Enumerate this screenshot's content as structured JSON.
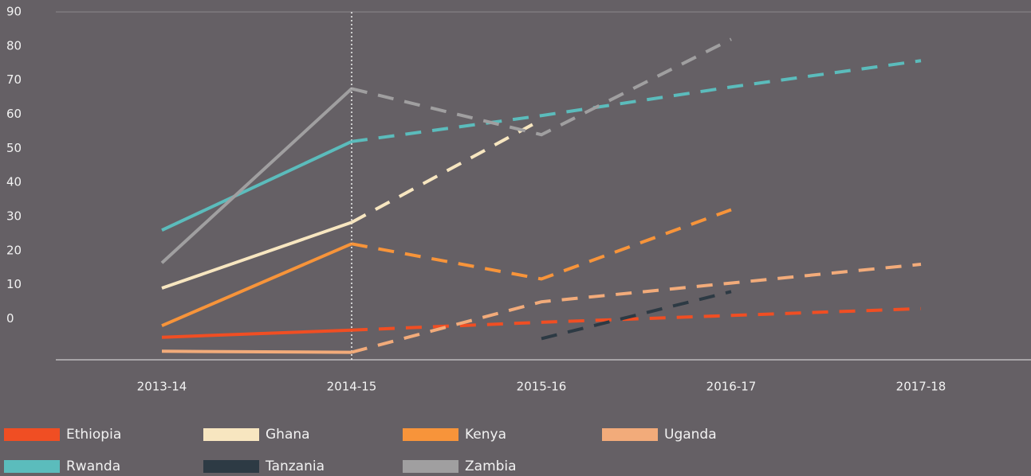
{
  "chart_data": {
    "type": "line",
    "categories": [
      "2013-14",
      "2014-15",
      "2015-16",
      "2016-17",
      "2017-18"
    ],
    "series": [
      {
        "name": "Ethiopia",
        "color": "#f04e23",
        "values": [
          -5.4,
          -3.3,
          -1,
          1,
          3
        ]
      },
      {
        "name": "Ghana",
        "color": "#f7e6c0",
        "values": [
          9,
          28.3,
          58.4,
          null,
          null
        ]
      },
      {
        "name": "Kenya",
        "color": "#f7943a",
        "values": [
          -2,
          22,
          11.7,
          32,
          null
        ]
      },
      {
        "name": "Uganda",
        "color": "#f2ab7a",
        "values": [
          -9.5,
          -9.8,
          5,
          10.5,
          16
        ]
      },
      {
        "name": "Rwanda",
        "color": "#5bbcbc",
        "values": [
          26,
          52,
          59.6,
          68,
          75.7
        ]
      },
      {
        "name": "Tanzania",
        "color": "#2d3a44",
        "values": [
          null,
          null,
          -5.8,
          8,
          null
        ]
      },
      {
        "name": "Zambia",
        "color": "#a09fa0",
        "values": [
          16.4,
          67.5,
          54,
          82,
          null
        ]
      }
    ],
    "dashed_from_category": 1,
    "ylim": [
      -12,
      90
    ],
    "yticks": [
      0,
      10,
      20,
      30,
      40,
      50,
      60,
      70,
      80,
      90
    ],
    "legend": "bottom"
  }
}
